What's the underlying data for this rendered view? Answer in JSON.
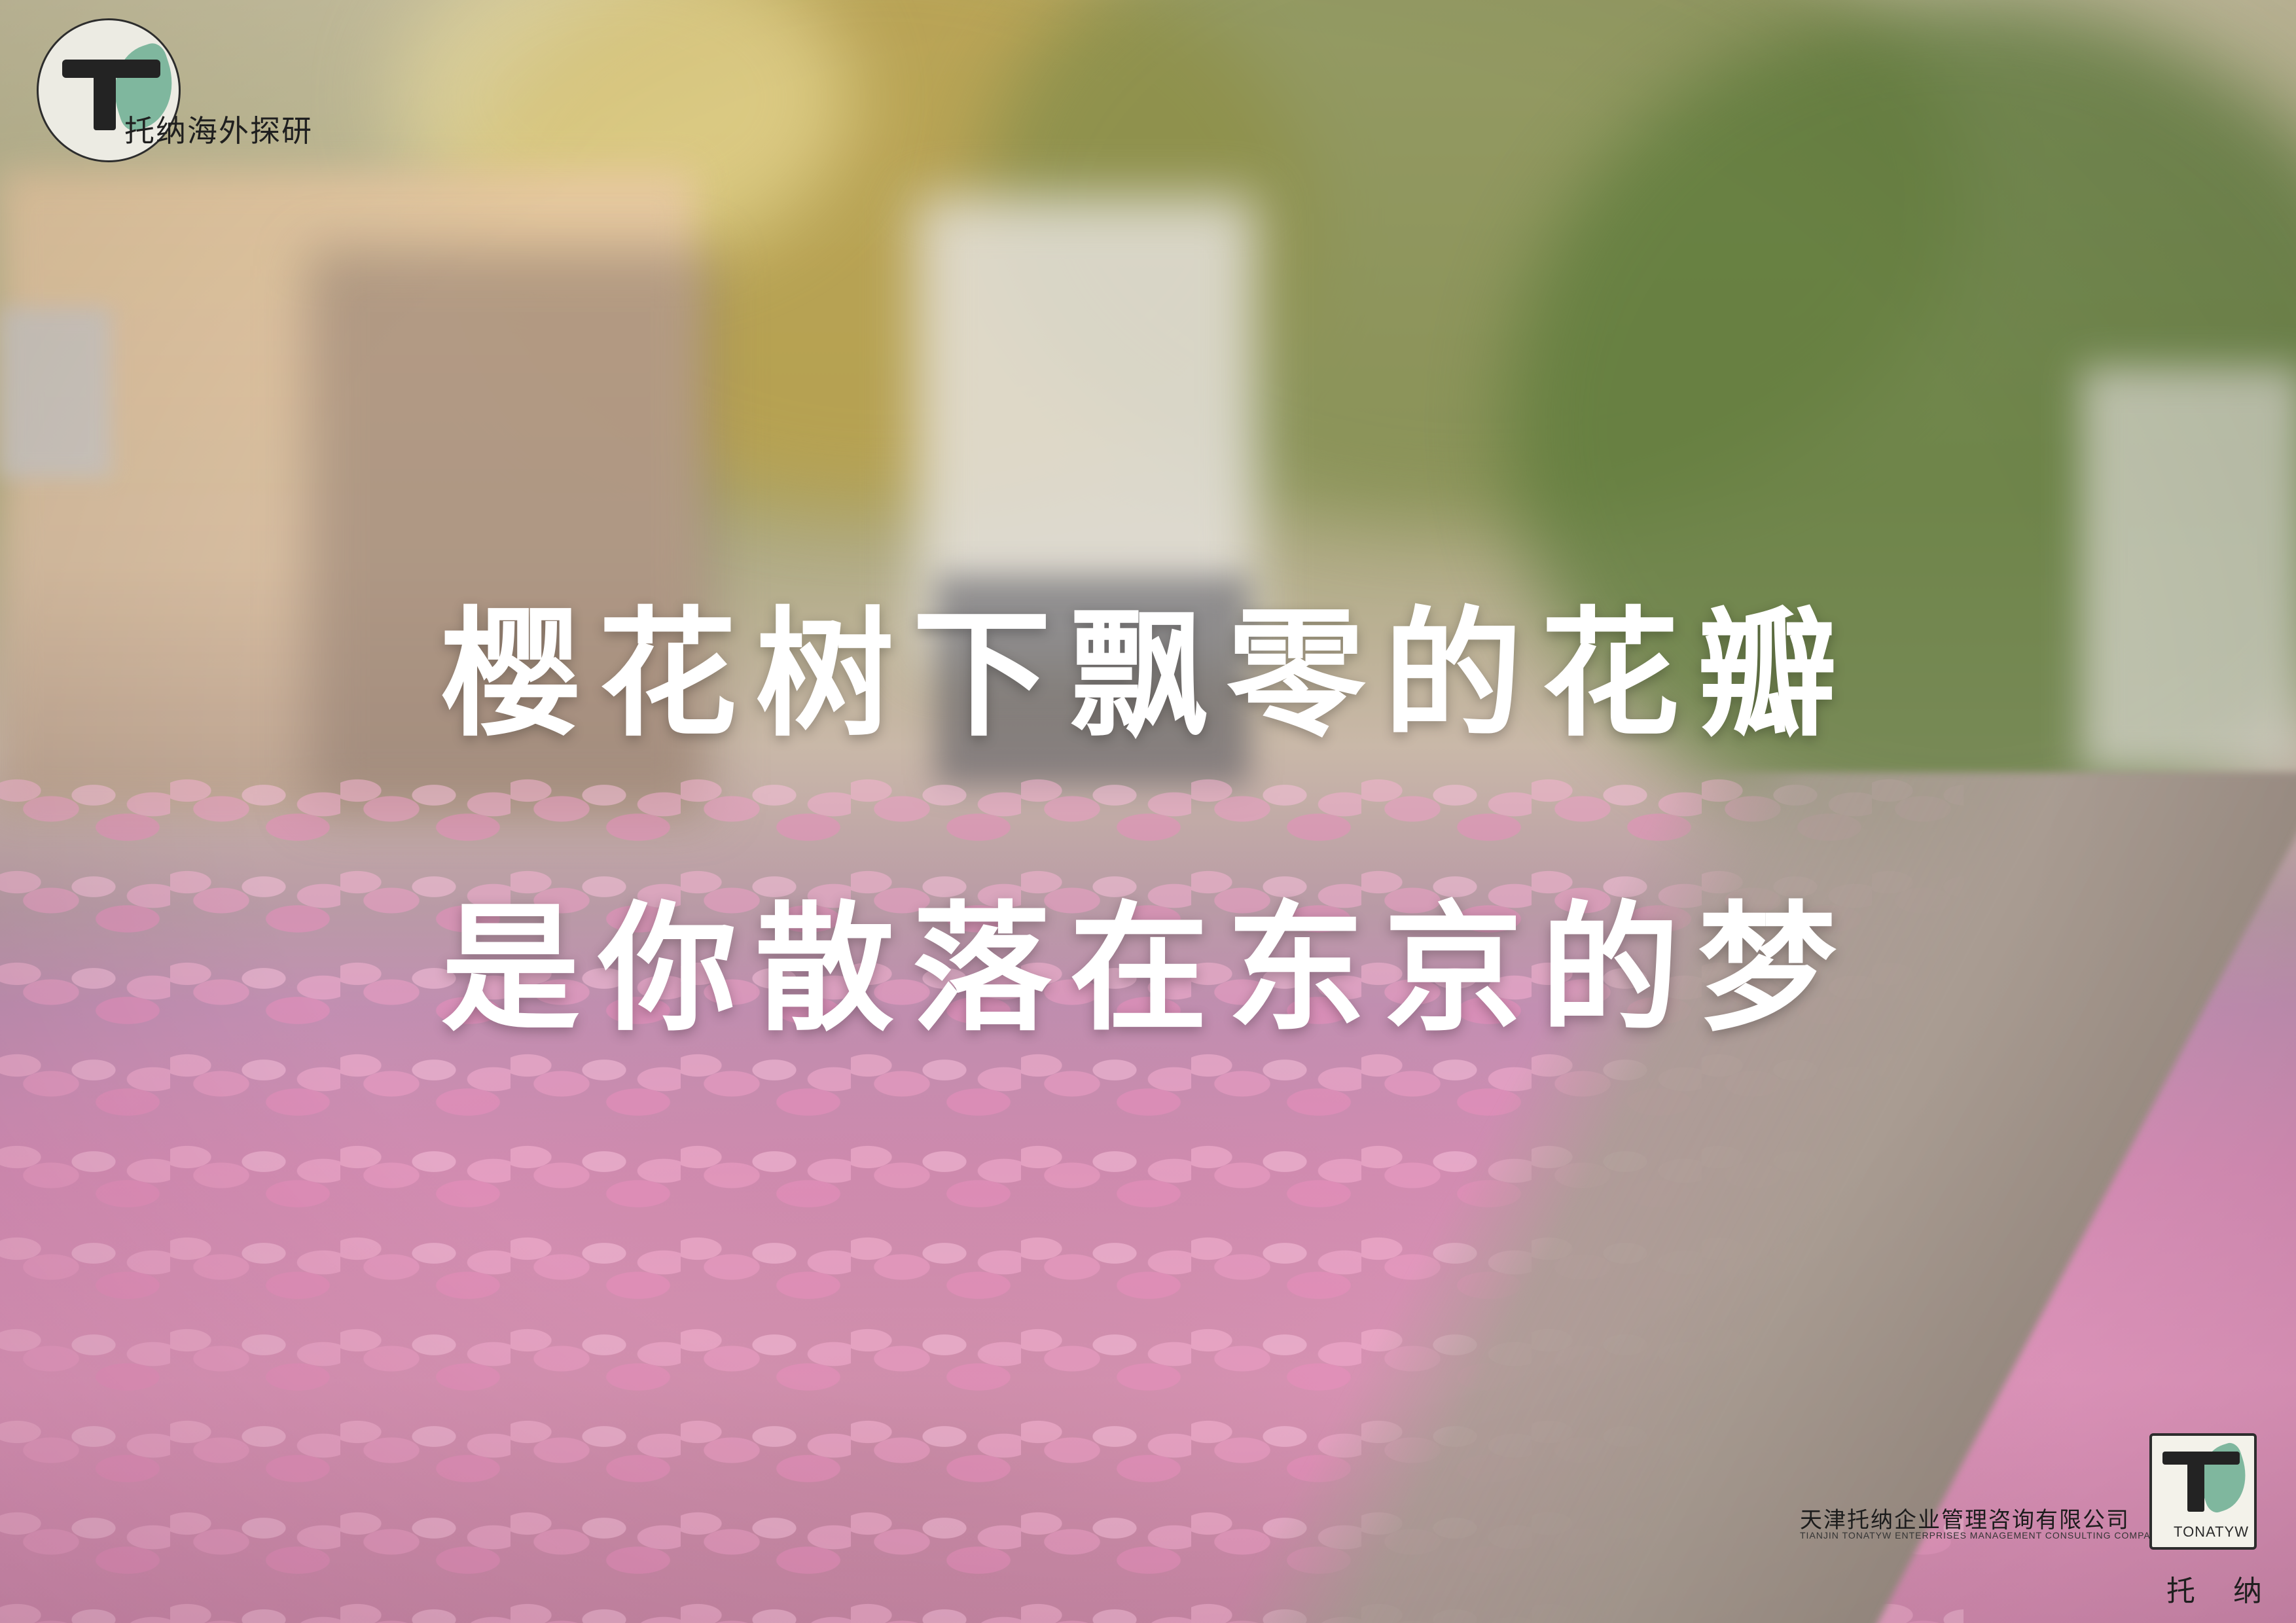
{
  "brand": {
    "top_left_name": "托纳海外探研",
    "logo_icon": "tonatyw-t-leaf-logo",
    "box_word": "TONATYW",
    "bottom_right_name": "托 纳"
  },
  "headline": {
    "line1": "樱花树下飘零的花瓣",
    "line2": "是你散落在东京的梦"
  },
  "company": {
    "name_cn": "天津托纳企业管理咨询有限公司",
    "name_en": "TIANJIN TONATYW ENTERPRISES MANAGEMENT CONSULTING COMPANY"
  },
  "colors": {
    "text": "#ffffff",
    "leaf_accent": "#7fb79e",
    "petal_pink": "#ee9fc6",
    "ink": "#232323"
  }
}
